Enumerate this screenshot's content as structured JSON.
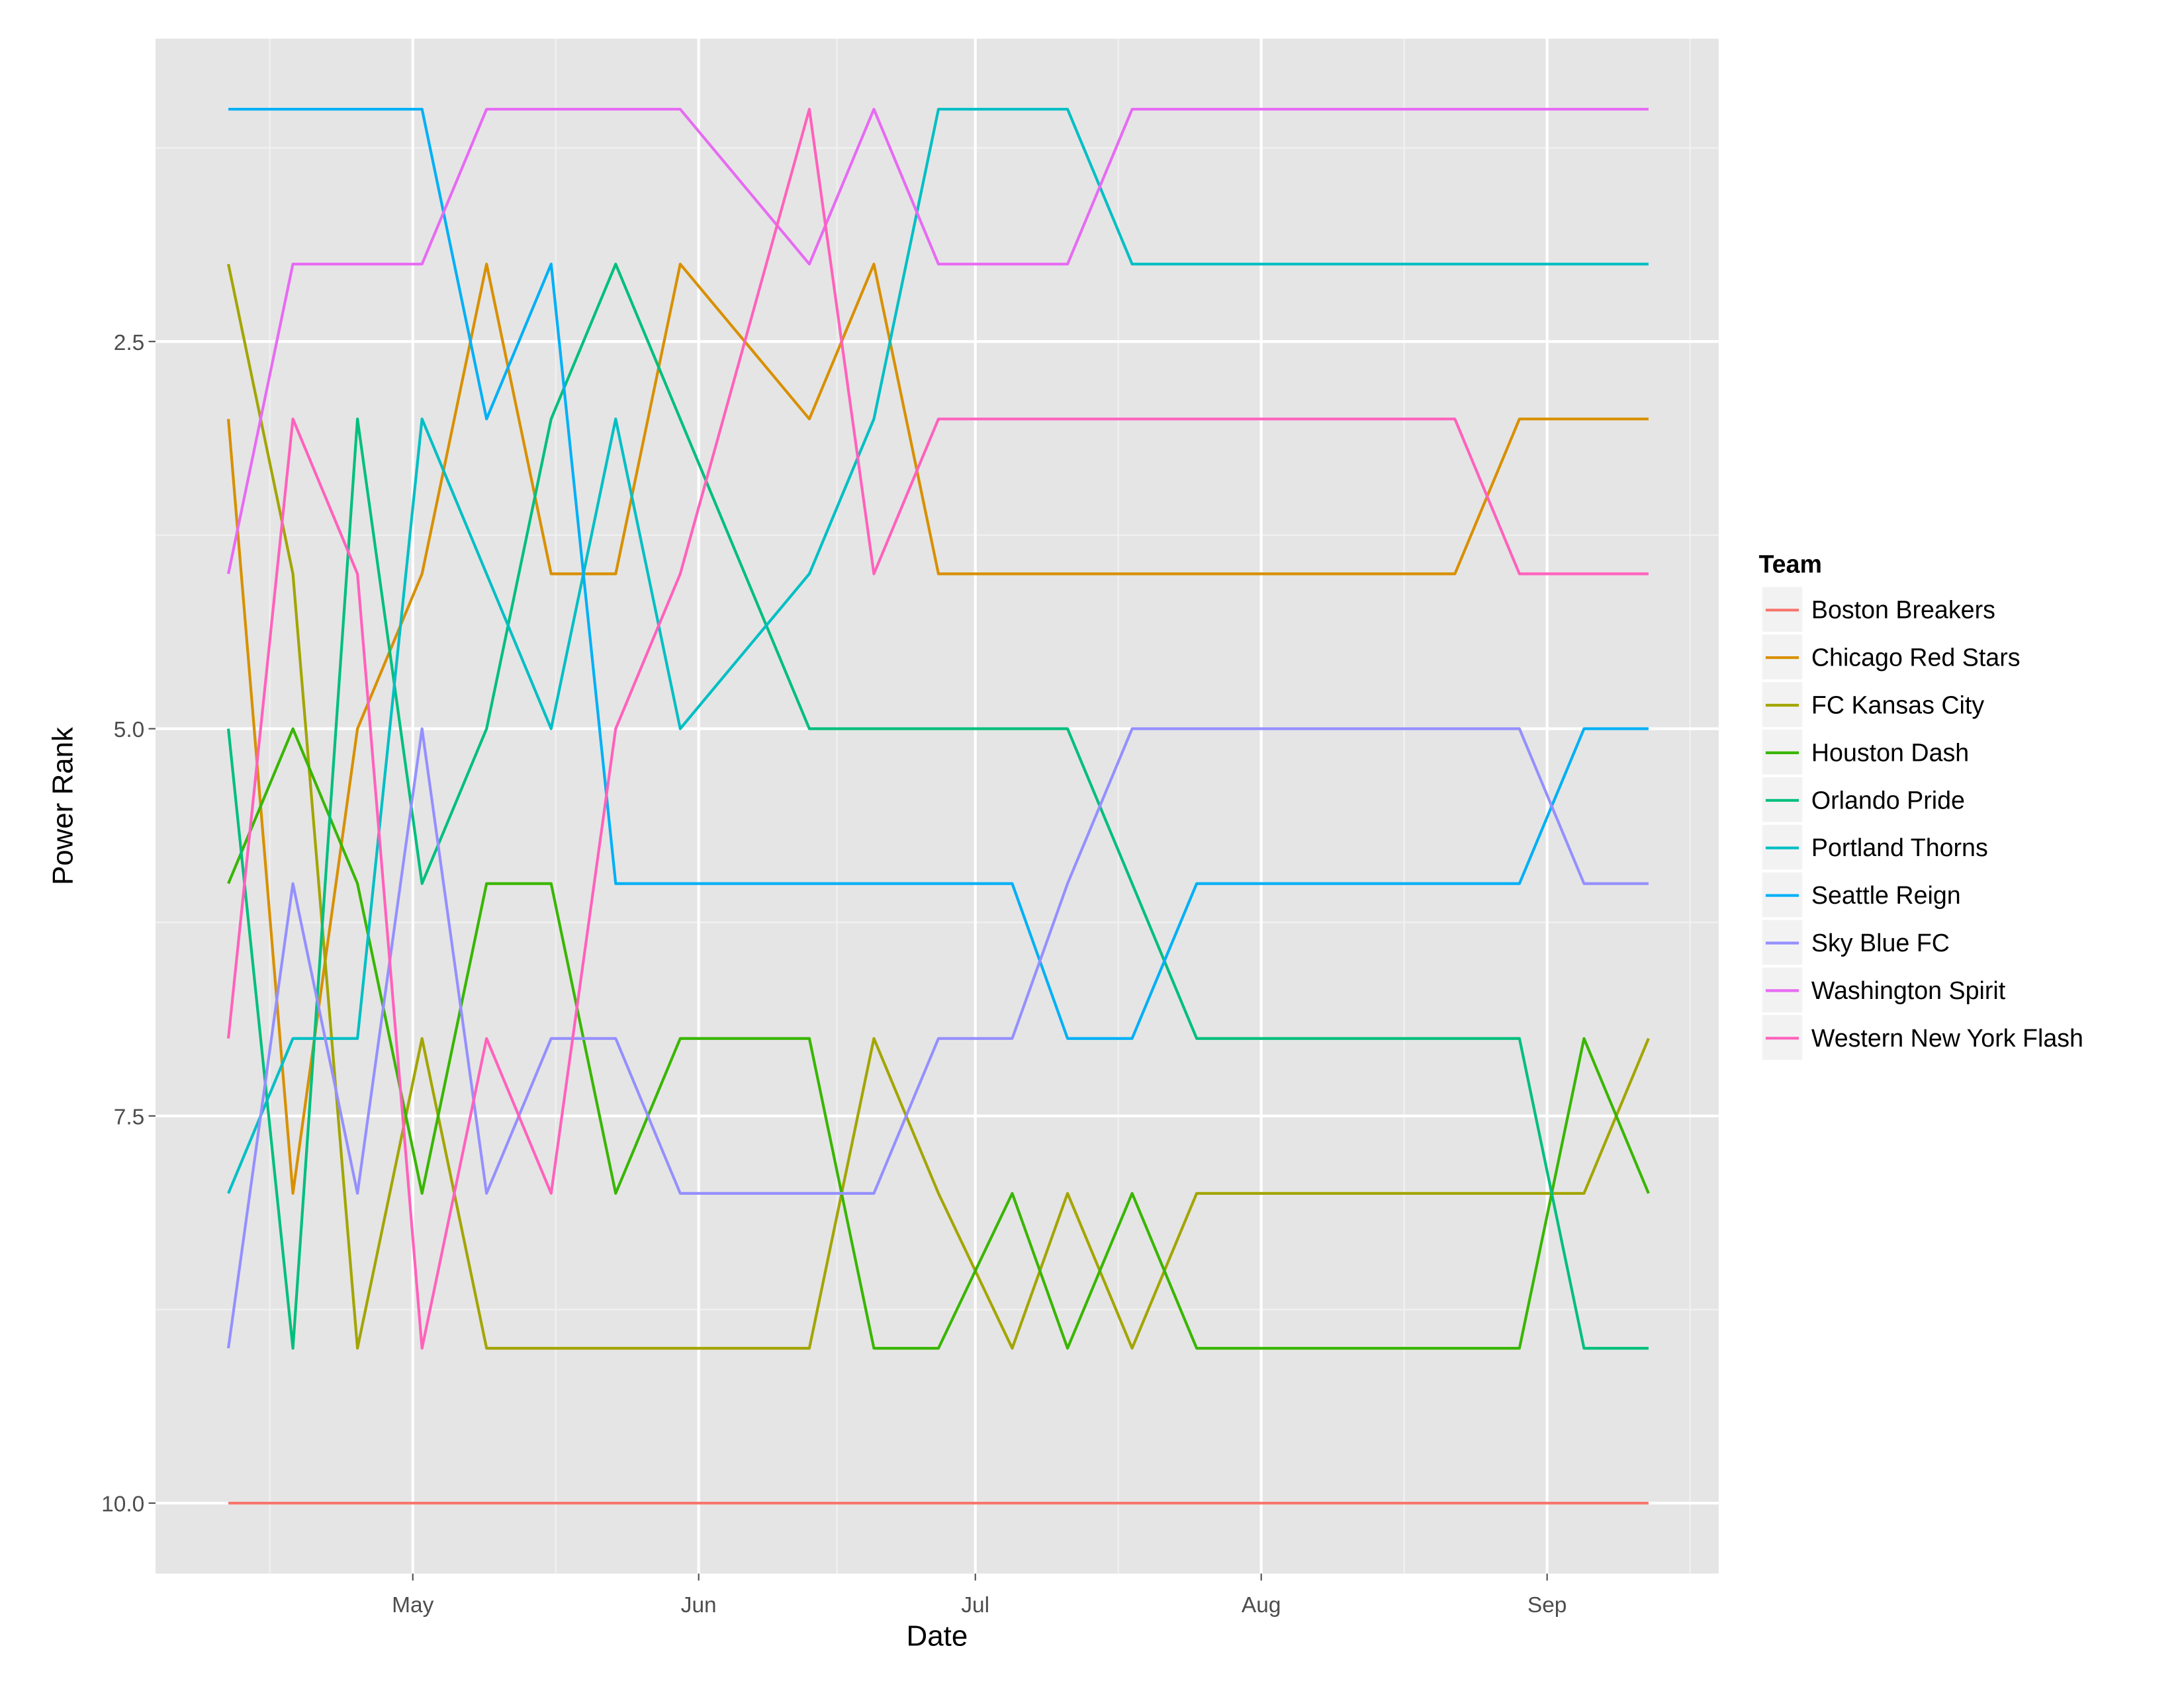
{
  "chart_data": {
    "type": "line",
    "x_label": "Date",
    "y_label": "Power Rank",
    "legend_title": "Team",
    "legend_position": "right",
    "grid": true,
    "y_reversed": true,
    "x": [
      102,
      109,
      116,
      123,
      130,
      137,
      144,
      151,
      165,
      172,
      179,
      187,
      193,
      200,
      207,
      214,
      221,
      228,
      235,
      242,
      249,
      256
    ],
    "xlim": [
      94.1,
      263.6
    ],
    "xticks": [
      {
        "value": 122,
        "label": "May"
      },
      {
        "value": 153,
        "label": "Jun"
      },
      {
        "value": 183,
        "label": "Jul"
      },
      {
        "value": 214,
        "label": "Aug"
      },
      {
        "value": 245,
        "label": "Sep"
      }
    ],
    "ylim": [
      0.545,
      10.455
    ],
    "yticks": [
      2.5,
      {
        "value": 5,
        "label": "5.0"
      },
      7.5,
      {
        "value": 10,
        "label": "10.0"
      }
    ],
    "series": [
      {
        "name": "Boston Breakers",
        "color": "#F8766D",
        "values": [
          10,
          10,
          10,
          10,
          10,
          10,
          10,
          10,
          10,
          10,
          10,
          10,
          10,
          10,
          10,
          10,
          10,
          10,
          10,
          10,
          10,
          10
        ]
      },
      {
        "name": "Chicago Red Stars",
        "color": "#D89000",
        "values": [
          3,
          8,
          5,
          4,
          2,
          4,
          4,
          2,
          3,
          2,
          4,
          4,
          4,
          4,
          4,
          4,
          4,
          4,
          4,
          3,
          3,
          3
        ]
      },
      {
        "name": "FC Kansas City",
        "color": "#A3A500",
        "values": [
          2,
          4,
          9,
          7,
          9,
          9,
          9,
          9,
          9,
          7,
          8,
          9,
          8,
          9,
          8,
          8,
          8,
          8,
          8,
          8,
          8,
          7
        ]
      },
      {
        "name": "Houston Dash",
        "color": "#39B600",
        "values": [
          6,
          5,
          6,
          8,
          6,
          6,
          8,
          7,
          7,
          9,
          9,
          8,
          9,
          8,
          9,
          9,
          9,
          9,
          9,
          9,
          7,
          8
        ]
      },
      {
        "name": "Orlando Pride",
        "color": "#00BF7D",
        "values": [
          5,
          9,
          3,
          6,
          5,
          3,
          2,
          3,
          5,
          5,
          5,
          5,
          5,
          6,
          7,
          7,
          7,
          7,
          7,
          7,
          9,
          9
        ]
      },
      {
        "name": "Portland Thorns",
        "color": "#00BFC4",
        "values": [
          8,
          7,
          7,
          3,
          4,
          5,
          3,
          5,
          4,
          3,
          1,
          1,
          1,
          2,
          2,
          2,
          2,
          2,
          2,
          2,
          2,
          2
        ]
      },
      {
        "name": "Seattle Reign",
        "color": "#00B0F6",
        "values": [
          1,
          1,
          1,
          1,
          3,
          2,
          6,
          6,
          6,
          6,
          6,
          6,
          7,
          7,
          6,
          6,
          6,
          6,
          6,
          6,
          5,
          5
        ]
      },
      {
        "name": "Sky Blue FC",
        "color": "#9590FF",
        "values": [
          9,
          6,
          8,
          5,
          8,
          7,
          7,
          8,
          8,
          8,
          7,
          7,
          6,
          5,
          5,
          5,
          5,
          5,
          5,
          5,
          6,
          6
        ]
      },
      {
        "name": "Washington Spirit",
        "color": "#E76BF3",
        "values": [
          4,
          2,
          2,
          2,
          1,
          1,
          1,
          1,
          2,
          1,
          2,
          2,
          2,
          1,
          1,
          1,
          1,
          1,
          1,
          1,
          1,
          1
        ]
      },
      {
        "name": "Western New York Flash",
        "color": "#FF62BC",
        "values": [
          7,
          3,
          4,
          9,
          7,
          8,
          5,
          4,
          1,
          4,
          3,
          3,
          3,
          3,
          3,
          3,
          3,
          3,
          3,
          4,
          4,
          4
        ]
      }
    ]
  }
}
